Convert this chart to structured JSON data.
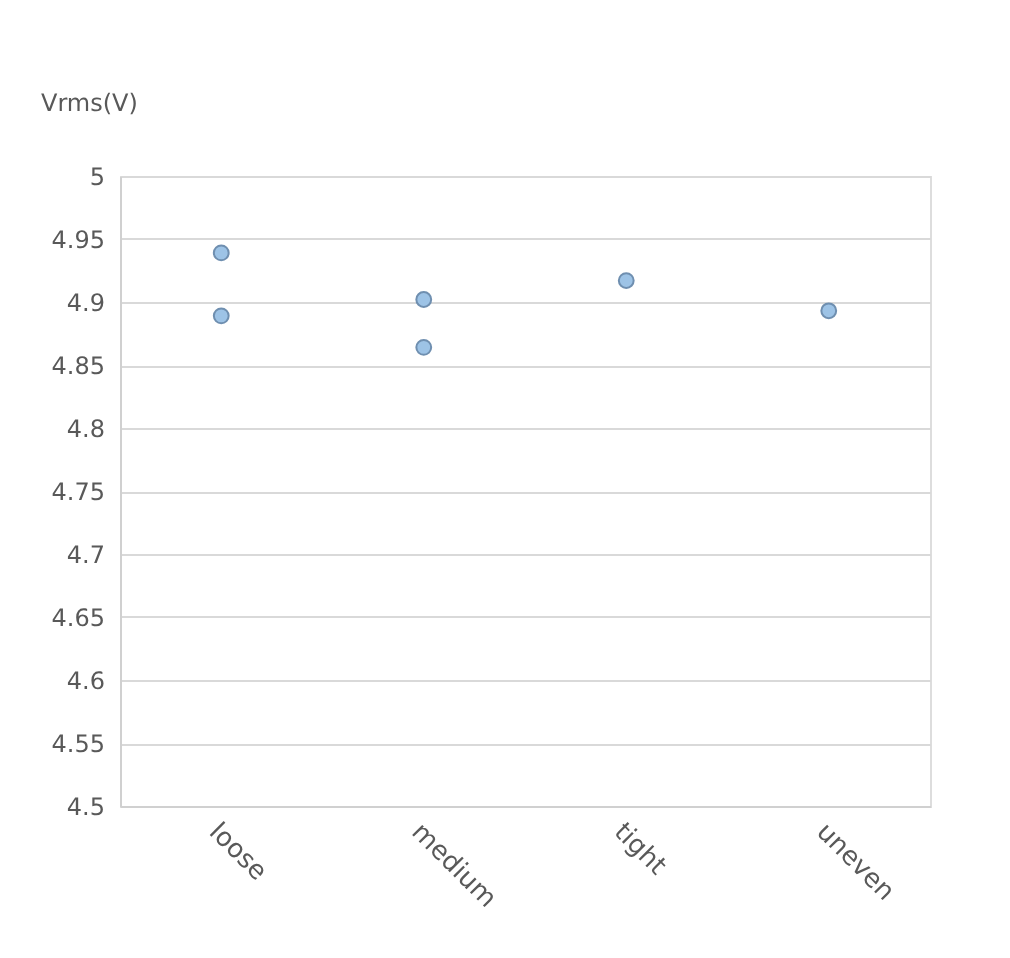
{
  "chart_data": {
    "type": "scatter",
    "ylabel": "Vrms(V)",
    "categories": [
      "loose",
      "medium",
      "tight",
      "uneven"
    ],
    "series": [
      {
        "x": [
          "loose",
          "loose",
          "medium",
          "medium",
          "tight",
          "uneven"
        ],
        "values": [
          4.939,
          4.889,
          4.902,
          4.864,
          4.917,
          4.893
        ],
        "color": "#9dc3e6"
      }
    ],
    "ylim": [
      4.5,
      5
    ],
    "yticks": [
      4.5,
      4.55,
      4.6,
      4.65,
      4.7,
      4.75,
      4.8,
      4.85,
      4.9,
      4.95,
      5
    ],
    "grid": "y",
    "legend": false,
    "marker": "circle"
  }
}
